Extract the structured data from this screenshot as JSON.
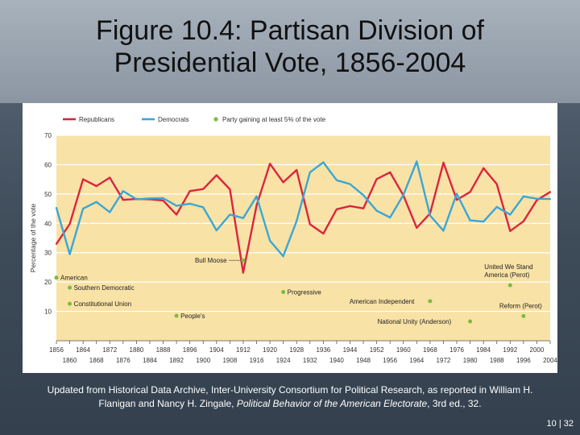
{
  "slide": {
    "title_line1": "Figure 10.4: Partisan Division of",
    "title_line2": "Presidential Vote, 1856-2004",
    "caption_part1": "Updated from Historical Data Archive, Inter-University Consortium for Political Research, as reported in William H. Flanigan and Nancy H. Zingale, ",
    "caption_italic": "Political Behavior of the American Electorate",
    "caption_part2": ", 3rd ed., 32.",
    "page_number": "10 | 32"
  },
  "colors": {
    "republican": "#d9263f",
    "democrat": "#3aa7d6",
    "third_party": "#7dba3e",
    "plot_bg": "#f9e2a6"
  },
  "chart_data": {
    "type": "line",
    "title": "",
    "xlabel": "",
    "ylabel": "Percentage of the vote",
    "ylim": [
      0,
      70
    ],
    "xlim": [
      1856,
      2004
    ],
    "yticks": [
      10,
      20,
      30,
      40,
      50,
      60,
      70
    ],
    "xticks_top": [
      "1856",
      "1864",
      "1872",
      "1880",
      "1888",
      "1896",
      "1904",
      "1912",
      "1920",
      "1928",
      "1936",
      "1944",
      "1952",
      "1960",
      "1968",
      "1976",
      "1984",
      "1992",
      "2000"
    ],
    "xticks_bottom": [
      "1860",
      "1868",
      "1876",
      "1884",
      "1892",
      "1900",
      "1908",
      "1916",
      "1924",
      "1932",
      "1940",
      "1948",
      "1956",
      "1964",
      "1972",
      "1980",
      "1988",
      "1996",
      "2004"
    ],
    "legend": {
      "republicans": "Republicans",
      "democrats": "Democrats",
      "third": "Party gaining at least 5% of the vote"
    },
    "x": [
      1856,
      1860,
      1864,
      1868,
      1872,
      1876,
      1880,
      1884,
      1888,
      1892,
      1896,
      1900,
      1904,
      1908,
      1912,
      1916,
      1920,
      1924,
      1928,
      1932,
      1936,
      1940,
      1944,
      1948,
      1952,
      1956,
      1960,
      1964,
      1968,
      1972,
      1976,
      1980,
      1984,
      1988,
      1992,
      1996,
      2000,
      2004
    ],
    "series": [
      {
        "name": "Republicans",
        "values": [
          33,
          39.8,
          55,
          52.7,
          55.6,
          48,
          48.3,
          48.2,
          47.8,
          43,
          51,
          51.7,
          56.4,
          51.6,
          23.2,
          46.1,
          60.3,
          54,
          58.2,
          39.7,
          36.5,
          44.8,
          45.9,
          45.1,
          55.1,
          57.4,
          49.5,
          38.5,
          43.4,
          60.7,
          48,
          50.7,
          58.8,
          53.4,
          37.4,
          40.7,
          47.9,
          50.7
        ]
      },
      {
        "name": "Democrats",
        "values": [
          45.3,
          29.5,
          45,
          47.3,
          43.8,
          51,
          48.2,
          48.5,
          48.6,
          46,
          46.7,
          45.5,
          37.6,
          43,
          41.8,
          49.2,
          34.1,
          28.8,
          40.8,
          57.4,
          60.8,
          54.7,
          53.4,
          49.6,
          44.3,
          42,
          49.7,
          61.1,
          42.7,
          37.5,
          50.1,
          41,
          40.6,
          45.6,
          43,
          49.2,
          48.4,
          48.3
        ]
      }
    ],
    "third_parties": [
      {
        "label": "American",
        "x": 1856,
        "y": 21.5
      },
      {
        "label": "Southern Democratic",
        "x": 1860,
        "y": 18.1
      },
      {
        "label": "Constitutional Union",
        "x": 1860,
        "y": 12.6
      },
      {
        "label": "People's",
        "x": 1892,
        "y": 8.5
      },
      {
        "label": "Bull Moose",
        "x": 1912,
        "y": 27.4
      },
      {
        "label": "Progressive",
        "x": 1924,
        "y": 16.6
      },
      {
        "label": "American Independent",
        "x": 1968,
        "y": 13.5
      },
      {
        "label": "National Unity (Anderson)",
        "x": 1980,
        "y": 6.6
      },
      {
        "label": "United We Stand America (Perot)",
        "x": 1992,
        "y": 18.9
      },
      {
        "label": "Reform (Perot)",
        "x": 1996,
        "y": 8.4
      }
    ]
  }
}
